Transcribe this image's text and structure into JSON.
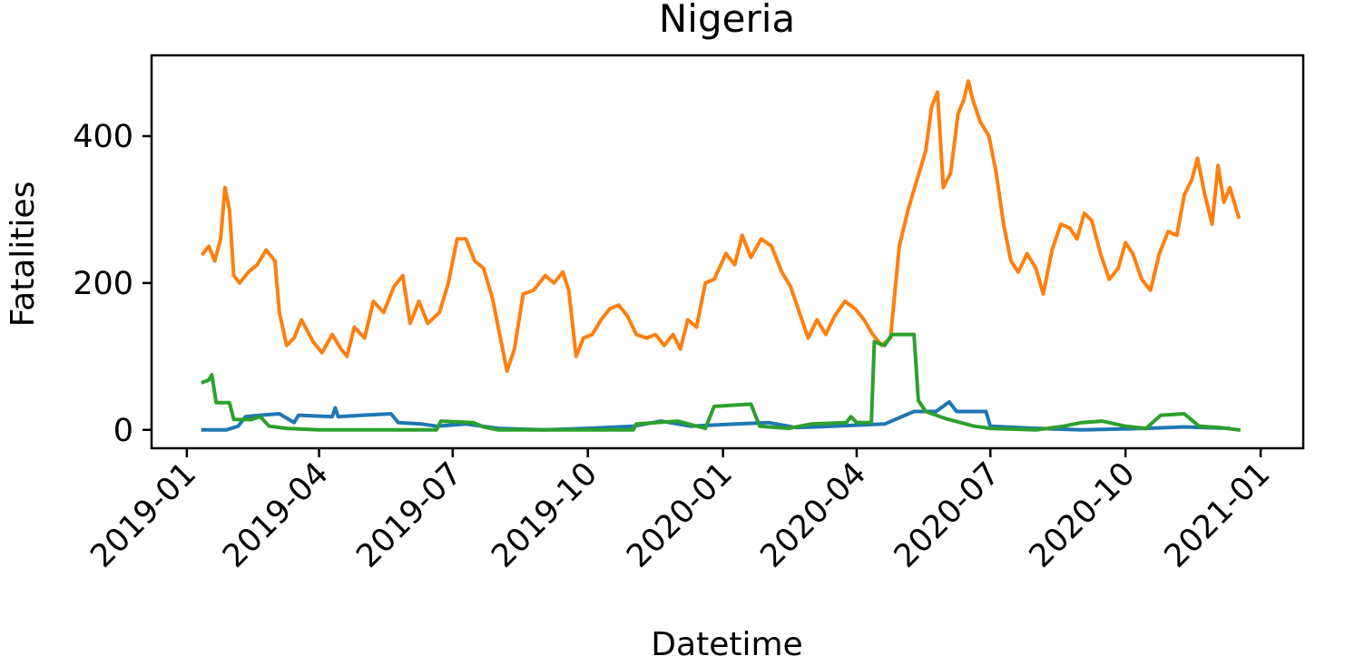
{
  "chart_data": {
    "type": "line",
    "title": "Nigeria",
    "xlabel": "Datetime",
    "ylabel": "Fatalities",
    "x_ticks": [
      "2019-01",
      "2019-04",
      "2019-07",
      "2019-10",
      "2020-01",
      "2020-04",
      "2020-07",
      "2020-10",
      "2021-01"
    ],
    "xlim": [
      "2018-12-08",
      "2021-01-30"
    ],
    "y_ticks": [
      0,
      200,
      400
    ],
    "ylim": [
      -25,
      510
    ],
    "grid": false,
    "legend": false,
    "series": [
      {
        "color": "#1f77b4",
        "points": [
          [
            "2019-01-12",
            0
          ],
          [
            "2019-01-28",
            0
          ],
          [
            "2019-02-05",
            5
          ],
          [
            "2019-02-10",
            18
          ],
          [
            "2019-02-20",
            20
          ],
          [
            "2019-03-05",
            22
          ],
          [
            "2019-03-15",
            10
          ],
          [
            "2019-03-18",
            20
          ],
          [
            "2019-04-10",
            18
          ],
          [
            "2019-04-12",
            30
          ],
          [
            "2019-04-14",
            18
          ],
          [
            "2019-05-01",
            20
          ],
          [
            "2019-05-20",
            22
          ],
          [
            "2019-05-25",
            10
          ],
          [
            "2019-06-10",
            8
          ],
          [
            "2019-06-20",
            5
          ],
          [
            "2019-07-10",
            8
          ],
          [
            "2019-08-01",
            2
          ],
          [
            "2019-09-01",
            0
          ],
          [
            "2019-10-01",
            2
          ],
          [
            "2019-11-01",
            5
          ],
          [
            "2019-11-20",
            12
          ],
          [
            "2019-12-10",
            5
          ],
          [
            "2020-01-10",
            8
          ],
          [
            "2020-02-01",
            10
          ],
          [
            "2020-02-20",
            3
          ],
          [
            "2020-03-15",
            5
          ],
          [
            "2020-04-20",
            8
          ],
          [
            "2020-05-10",
            25
          ],
          [
            "2020-05-25",
            25
          ],
          [
            "2020-06-03",
            38
          ],
          [
            "2020-06-08",
            25
          ],
          [
            "2020-06-28",
            25
          ],
          [
            "2020-07-01",
            5
          ],
          [
            "2020-08-01",
            2
          ],
          [
            "2020-09-01",
            0
          ],
          [
            "2020-10-15",
            2
          ],
          [
            "2020-11-10",
            4
          ],
          [
            "2020-12-10",
            2
          ]
        ]
      },
      {
        "color": "#ff7f0e",
        "points": [
          [
            "2019-01-12",
            240
          ],
          [
            "2019-01-16",
            250
          ],
          [
            "2019-01-20",
            230
          ],
          [
            "2019-01-24",
            260
          ],
          [
            "2019-01-27",
            330
          ],
          [
            "2019-01-30",
            300
          ],
          [
            "2019-02-02",
            210
          ],
          [
            "2019-02-06",
            200
          ],
          [
            "2019-02-12",
            215
          ],
          [
            "2019-02-18",
            225
          ],
          [
            "2019-02-24",
            245
          ],
          [
            "2019-03-02",
            230
          ],
          [
            "2019-03-05",
            160
          ],
          [
            "2019-03-10",
            115
          ],
          [
            "2019-03-15",
            125
          ],
          [
            "2019-03-20",
            150
          ],
          [
            "2019-03-28",
            120
          ],
          [
            "2019-04-03",
            105
          ],
          [
            "2019-04-10",
            130
          ],
          [
            "2019-04-16",
            110
          ],
          [
            "2019-04-20",
            100
          ],
          [
            "2019-04-25",
            140
          ],
          [
            "2019-05-02",
            125
          ],
          [
            "2019-05-08",
            175
          ],
          [
            "2019-05-15",
            160
          ],
          [
            "2019-05-22",
            195
          ],
          [
            "2019-05-28",
            210
          ],
          [
            "2019-06-02",
            145
          ],
          [
            "2019-06-08",
            175
          ],
          [
            "2019-06-14",
            145
          ],
          [
            "2019-06-22",
            160
          ],
          [
            "2019-06-28",
            200
          ],
          [
            "2019-07-04",
            260
          ],
          [
            "2019-07-10",
            260
          ],
          [
            "2019-07-16",
            230
          ],
          [
            "2019-07-22",
            220
          ],
          [
            "2019-07-28",
            180
          ],
          [
            "2019-08-03",
            120
          ],
          [
            "2019-08-07",
            80
          ],
          [
            "2019-08-12",
            110
          ],
          [
            "2019-08-18",
            185
          ],
          [
            "2019-08-25",
            190
          ],
          [
            "2019-09-02",
            210
          ],
          [
            "2019-09-08",
            200
          ],
          [
            "2019-09-14",
            215
          ],
          [
            "2019-09-18",
            190
          ],
          [
            "2019-09-23",
            100
          ],
          [
            "2019-09-28",
            125
          ],
          [
            "2019-10-04",
            130
          ],
          [
            "2019-10-10",
            150
          ],
          [
            "2019-10-16",
            165
          ],
          [
            "2019-10-22",
            170
          ],
          [
            "2019-10-28",
            155
          ],
          [
            "2019-11-03",
            130
          ],
          [
            "2019-11-10",
            125
          ],
          [
            "2019-11-16",
            130
          ],
          [
            "2019-11-22",
            115
          ],
          [
            "2019-11-28",
            130
          ],
          [
            "2019-12-03",
            110
          ],
          [
            "2019-12-08",
            150
          ],
          [
            "2019-12-14",
            140
          ],
          [
            "2019-12-20",
            200
          ],
          [
            "2019-12-26",
            205
          ],
          [
            "2020-01-03",
            240
          ],
          [
            "2020-01-09",
            225
          ],
          [
            "2020-01-14",
            265
          ],
          [
            "2020-01-20",
            235
          ],
          [
            "2020-01-27",
            260
          ],
          [
            "2020-02-03",
            250
          ],
          [
            "2020-02-10",
            215
          ],
          [
            "2020-02-16",
            195
          ],
          [
            "2020-02-22",
            160
          ],
          [
            "2020-02-28",
            125
          ],
          [
            "2020-03-05",
            150
          ],
          [
            "2020-03-11",
            130
          ],
          [
            "2020-03-17",
            155
          ],
          [
            "2020-03-24",
            175
          ],
          [
            "2020-03-31",
            165
          ],
          [
            "2020-04-06",
            150
          ],
          [
            "2020-04-12",
            130
          ],
          [
            "2020-04-18",
            115
          ],
          [
            "2020-04-24",
            125
          ],
          [
            "2020-04-30",
            250
          ],
          [
            "2020-05-06",
            300
          ],
          [
            "2020-05-12",
            340
          ],
          [
            "2020-05-18",
            380
          ],
          [
            "2020-05-22",
            440
          ],
          [
            "2020-05-26",
            460
          ],
          [
            "2020-05-30",
            330
          ],
          [
            "2020-06-04",
            350
          ],
          [
            "2020-06-09",
            430
          ],
          [
            "2020-06-13",
            450
          ],
          [
            "2020-06-16",
            475
          ],
          [
            "2020-06-19",
            450
          ],
          [
            "2020-06-24",
            420
          ],
          [
            "2020-06-30",
            400
          ],
          [
            "2020-07-05",
            350
          ],
          [
            "2020-07-10",
            280
          ],
          [
            "2020-07-15",
            230
          ],
          [
            "2020-07-20",
            215
          ],
          [
            "2020-07-26",
            240
          ],
          [
            "2020-08-01",
            220
          ],
          [
            "2020-08-06",
            185
          ],
          [
            "2020-08-12",
            245
          ],
          [
            "2020-08-18",
            280
          ],
          [
            "2020-08-24",
            275
          ],
          [
            "2020-08-29",
            260
          ],
          [
            "2020-09-03",
            295
          ],
          [
            "2020-09-08",
            285
          ],
          [
            "2020-09-14",
            240
          ],
          [
            "2020-09-20",
            205
          ],
          [
            "2020-09-26",
            220
          ],
          [
            "2020-10-01",
            255
          ],
          [
            "2020-10-06",
            240
          ],
          [
            "2020-10-12",
            205
          ],
          [
            "2020-10-18",
            190
          ],
          [
            "2020-10-24",
            240
          ],
          [
            "2020-10-30",
            270
          ],
          [
            "2020-11-05",
            265
          ],
          [
            "2020-11-10",
            320
          ],
          [
            "2020-11-15",
            340
          ],
          [
            "2020-11-19",
            370
          ],
          [
            "2020-11-24",
            320
          ],
          [
            "2020-11-29",
            280
          ],
          [
            "2020-12-03",
            360
          ],
          [
            "2020-12-07",
            310
          ],
          [
            "2020-12-11",
            330
          ],
          [
            "2020-12-17",
            290
          ]
        ]
      },
      {
        "color": "#2ca02c",
        "points": [
          [
            "2019-01-12",
            65
          ],
          [
            "2019-01-16",
            68
          ],
          [
            "2019-01-18",
            75
          ],
          [
            "2019-01-21",
            37
          ],
          [
            "2019-01-30",
            37
          ],
          [
            "2019-02-02",
            14
          ],
          [
            "2019-02-14",
            14
          ],
          [
            "2019-02-20",
            18
          ],
          [
            "2019-02-26",
            5
          ],
          [
            "2019-03-10",
            2
          ],
          [
            "2019-04-01",
            0
          ],
          [
            "2019-06-20",
            0
          ],
          [
            "2019-06-23",
            12
          ],
          [
            "2019-07-15",
            10
          ],
          [
            "2019-07-22",
            4
          ],
          [
            "2019-08-01",
            0
          ],
          [
            "2019-11-01",
            0
          ],
          [
            "2019-11-03",
            8
          ],
          [
            "2019-12-01",
            12
          ],
          [
            "2019-12-20",
            2
          ],
          [
            "2019-12-26",
            32
          ],
          [
            "2020-01-20",
            35
          ],
          [
            "2020-01-26",
            5
          ],
          [
            "2020-02-15",
            2
          ],
          [
            "2020-03-01",
            8
          ],
          [
            "2020-03-25",
            10
          ],
          [
            "2020-03-28",
            18
          ],
          [
            "2020-04-01",
            10
          ],
          [
            "2020-04-11",
            10
          ],
          [
            "2020-04-13",
            120
          ],
          [
            "2020-04-20",
            115
          ],
          [
            "2020-04-25",
            130
          ],
          [
            "2020-05-10",
            130
          ],
          [
            "2020-05-13",
            40
          ],
          [
            "2020-05-18",
            25
          ],
          [
            "2020-06-01",
            15
          ],
          [
            "2020-06-20",
            5
          ],
          [
            "2020-07-01",
            2
          ],
          [
            "2020-08-01",
            0
          ],
          [
            "2020-08-20",
            5
          ],
          [
            "2020-09-01",
            10
          ],
          [
            "2020-09-15",
            12
          ],
          [
            "2020-10-01",
            5
          ],
          [
            "2020-10-15",
            2
          ],
          [
            "2020-10-25",
            20
          ],
          [
            "2020-11-10",
            22
          ],
          [
            "2020-11-20",
            5
          ],
          [
            "2020-12-05",
            3
          ],
          [
            "2020-12-17",
            0
          ]
        ]
      }
    ]
  }
}
